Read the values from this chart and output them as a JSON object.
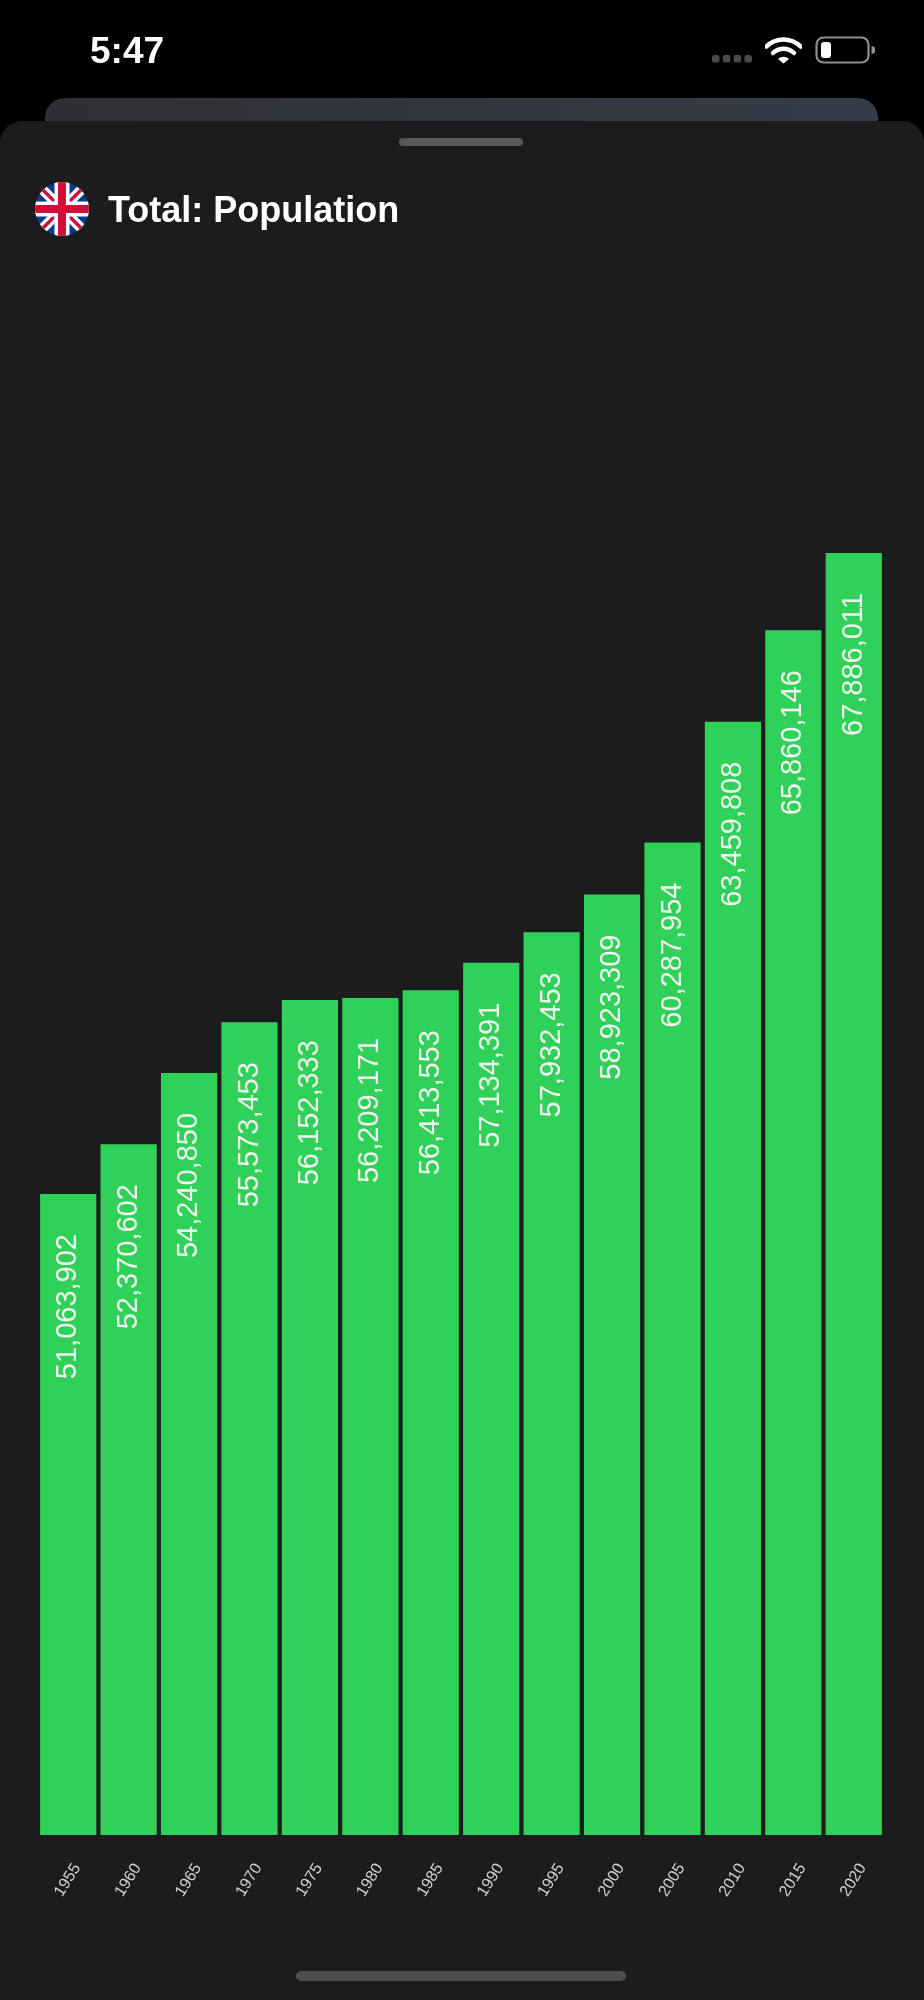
{
  "chart_data": {
    "type": "bar",
    "title": "Total: Population",
    "categories": [
      "1955",
      "1960",
      "1965",
      "1970",
      "1975",
      "1980",
      "1985",
      "1990",
      "1995",
      "2000",
      "2005",
      "2010",
      "2015",
      "2020"
    ],
    "values": [
      51063902,
      52370602,
      54240850,
      55573453,
      56152333,
      56209171,
      56413553,
      57134391,
      57932453,
      58923309,
      60287954,
      63459808,
      65860146,
      67886011
    ],
    "value_labels": [
      "51,063,902",
      "52,370,602",
      "54,240,850",
      "55,573,453",
      "56,152,333",
      "56,209,171",
      "56,413,553",
      "57,134,391",
      "57,932,453",
      "58,923,309",
      "60,287,954",
      "63,459,808",
      "65,860,146",
      "67,886,011"
    ],
    "color": "#30d158",
    "tick_labels": "x",
    "annotations": [
      "5:47"
    ]
  }
}
